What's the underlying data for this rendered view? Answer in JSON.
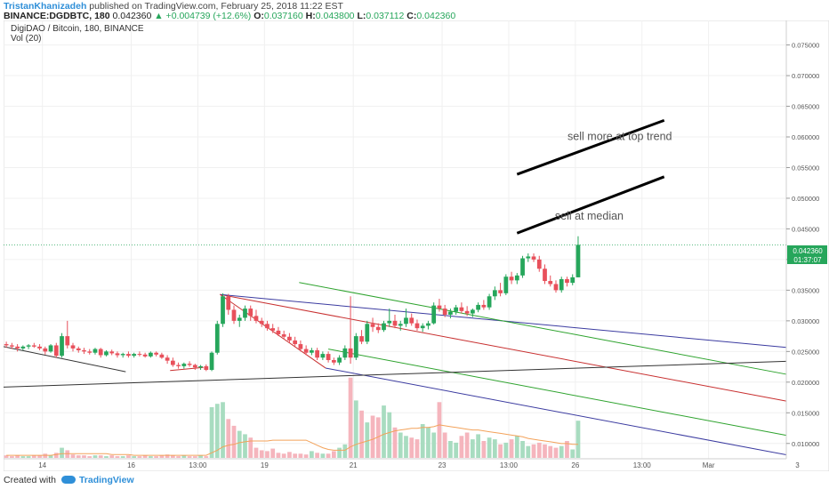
{
  "header": {
    "author": "TristanKhanizadeh",
    "published": "published on TradingView.com, February 25, 2018 11:22 EST",
    "symbol": "BINANCE:DGDBTC, 180",
    "last": "0.042360",
    "change": "▲ +0.004739 (+12.6%)",
    "open_label": "O:",
    "open": "0.037160",
    "high_label": "H:",
    "high": "0.043800",
    "low_label": "L:",
    "low": "0.037112",
    "close_label": "C:",
    "close": "0.042360"
  },
  "legend": {
    "pair": "DigiDAO / Bitcoin, 180, BINANCE",
    "volume": "Vol (20)"
  },
  "price_label": {
    "value": "0.042360",
    "timer": "01:37:07"
  },
  "footer": {
    "created_with": "Created with",
    "brand": "TradingView"
  },
  "colors": {
    "up": "#26a65b",
    "down": "#e8505b",
    "vol_up": "#a8dcc0",
    "vol_down": "#f5b5bd",
    "pitchfork_outer": "#3b3ba0",
    "pitchfork_inner": "#2ea32e",
    "pitchfork_median": "#c83030",
    "ma": "#f3a25a"
  },
  "chart_data": {
    "type": "candlestick",
    "y_axis": {
      "range": [
        0.0075,
        0.079
      ],
      "ticks": [
        "0.010000",
        "0.015000",
        "0.020000",
        "0.025000",
        "0.030000",
        "0.035000",
        "0.040000",
        "0.045000",
        "0.050000",
        "0.055000",
        "0.060000",
        "0.065000",
        "0.070000",
        "0.075000"
      ],
      "tick_values": [
        0.01,
        0.015,
        0.02,
        0.025,
        0.03,
        0.035,
        0.04,
        0.045,
        0.05,
        0.055,
        0.06,
        0.065,
        0.07,
        0.075
      ]
    },
    "x_axis": {
      "range_bars": [
        0,
        141
      ],
      "ticks": [
        {
          "bar": 7,
          "label": "14"
        },
        {
          "bar": 23,
          "label": "16"
        },
        {
          "bar": 35,
          "label": "13:00"
        },
        {
          "bar": 47,
          "label": "19"
        },
        {
          "bar": 63,
          "label": "21"
        },
        {
          "bar": 79,
          "label": "23"
        },
        {
          "bar": 91,
          "label": "13:00"
        },
        {
          "bar": 103,
          "label": "26"
        },
        {
          "bar": 115,
          "label": "13:00"
        },
        {
          "bar": 127,
          "label": "Mar"
        },
        {
          "bar": 143,
          "label": "3"
        }
      ]
    },
    "candles": [
      [
        0.0262,
        0.0266,
        0.0256,
        0.026
      ],
      [
        0.026,
        0.0264,
        0.0254,
        0.0258
      ],
      [
        0.0258,
        0.0262,
        0.025,
        0.0255
      ],
      [
        0.0255,
        0.026,
        0.0252,
        0.0258
      ],
      [
        0.0258,
        0.0262,
        0.0254,
        0.026
      ],
      [
        0.026,
        0.0264,
        0.0256,
        0.0258
      ],
      [
        0.0258,
        0.0262,
        0.0252,
        0.0255
      ],
      [
        0.0255,
        0.0258,
        0.0245,
        0.025
      ],
      [
        0.025,
        0.0262,
        0.0248,
        0.026
      ],
      [
        0.026,
        0.0264,
        0.024,
        0.0243
      ],
      [
        0.0243,
        0.028,
        0.024,
        0.0275
      ],
      [
        0.0275,
        0.03,
        0.0255,
        0.026
      ],
      [
        0.026,
        0.0264,
        0.025,
        0.0255
      ],
      [
        0.0255,
        0.0258,
        0.0248,
        0.0252
      ],
      [
        0.0252,
        0.0256,
        0.0246,
        0.025
      ],
      [
        0.025,
        0.0254,
        0.0245,
        0.0248
      ],
      [
        0.0248,
        0.0256,
        0.0245,
        0.0254
      ],
      [
        0.0254,
        0.0256,
        0.024,
        0.0244
      ],
      [
        0.0244,
        0.0252,
        0.0242,
        0.025
      ],
      [
        0.025,
        0.0253,
        0.0244,
        0.0247
      ],
      [
        0.0247,
        0.025,
        0.024,
        0.0244
      ],
      [
        0.0244,
        0.0248,
        0.024,
        0.0246
      ],
      [
        0.0246,
        0.025,
        0.024,
        0.0243
      ],
      [
        0.0243,
        0.0248,
        0.024,
        0.0246
      ],
      [
        0.0246,
        0.025,
        0.0242,
        0.0245
      ],
      [
        0.0245,
        0.0248,
        0.024,
        0.0242
      ],
      [
        0.0242,
        0.025,
        0.024,
        0.0248
      ],
      [
        0.0248,
        0.025,
        0.0242,
        0.0245
      ],
      [
        0.0245,
        0.0248,
        0.0238,
        0.024
      ],
      [
        0.024,
        0.0244,
        0.023,
        0.0235
      ],
      [
        0.0235,
        0.024,
        0.0225,
        0.0228
      ],
      [
        0.0228,
        0.0232,
        0.0222,
        0.0226
      ],
      [
        0.0226,
        0.0232,
        0.0222,
        0.023
      ],
      [
        0.023,
        0.0234,
        0.0225,
        0.0228
      ],
      [
        0.0228,
        0.023,
        0.022,
        0.0224
      ],
      [
        0.0224,
        0.0228,
        0.022,
        0.0226
      ],
      [
        0.0226,
        0.0229,
        0.0218,
        0.022
      ],
      [
        0.022,
        0.025,
        0.0218,
        0.0248
      ],
      [
        0.0248,
        0.03,
        0.0245,
        0.0295
      ],
      [
        0.0295,
        0.0345,
        0.029,
        0.034
      ],
      [
        0.034,
        0.0344,
        0.031,
        0.0318
      ],
      [
        0.0318,
        0.0325,
        0.0295,
        0.03
      ],
      [
        0.03,
        0.031,
        0.029,
        0.0305
      ],
      [
        0.0305,
        0.0325,
        0.03,
        0.032
      ],
      [
        0.032,
        0.0325,
        0.03,
        0.0308
      ],
      [
        0.0308,
        0.0318,
        0.0296,
        0.03
      ],
      [
        0.03,
        0.0305,
        0.029,
        0.0295
      ],
      [
        0.0295,
        0.03,
        0.0284,
        0.0288
      ],
      [
        0.0288,
        0.0295,
        0.028,
        0.0284
      ],
      [
        0.0284,
        0.029,
        0.0275,
        0.0278
      ],
      [
        0.0278,
        0.0284,
        0.027,
        0.0274
      ],
      [
        0.0274,
        0.028,
        0.0264,
        0.0268
      ],
      [
        0.0268,
        0.0274,
        0.0258,
        0.0262
      ],
      [
        0.0262,
        0.0268,
        0.025,
        0.0254
      ],
      [
        0.0254,
        0.026,
        0.0244,
        0.0248
      ],
      [
        0.0248,
        0.0256,
        0.0244,
        0.0252
      ],
      [
        0.0252,
        0.0256,
        0.0236,
        0.024
      ],
      [
        0.024,
        0.025,
        0.0236,
        0.0246
      ],
      [
        0.0246,
        0.025,
        0.0232,
        0.0236
      ],
      [
        0.0236,
        0.024,
        0.0228,
        0.0232
      ],
      [
        0.0232,
        0.0244,
        0.0228,
        0.024
      ],
      [
        0.024,
        0.026,
        0.0236,
        0.0255
      ],
      [
        0.0255,
        0.034,
        0.023,
        0.024
      ],
      [
        0.024,
        0.028,
        0.0236,
        0.0275
      ],
      [
        0.0275,
        0.0285,
        0.0262,
        0.0266
      ],
      [
        0.0266,
        0.03,
        0.0262,
        0.0295
      ],
      [
        0.0295,
        0.0305,
        0.0282,
        0.029
      ],
      [
        0.029,
        0.0296,
        0.028,
        0.0285
      ],
      [
        0.0285,
        0.03,
        0.0282,
        0.0296
      ],
      [
        0.0296,
        0.032,
        0.029,
        0.03
      ],
      [
        0.03,
        0.031,
        0.0288,
        0.0292
      ],
      [
        0.0292,
        0.03,
        0.0284,
        0.0295
      ],
      [
        0.0295,
        0.032,
        0.029,
        0.0305
      ],
      [
        0.0305,
        0.0312,
        0.0292,
        0.0296
      ],
      [
        0.0296,
        0.0302,
        0.0284,
        0.0288
      ],
      [
        0.0288,
        0.0296,
        0.0282,
        0.0292
      ],
      [
        0.0292,
        0.03,
        0.0286,
        0.0296
      ],
      [
        0.0296,
        0.033,
        0.0294,
        0.0325
      ],
      [
        0.0325,
        0.0336,
        0.0315,
        0.032
      ],
      [
        0.032,
        0.0326,
        0.0306,
        0.031
      ],
      [
        0.031,
        0.032,
        0.0304,
        0.0315
      ],
      [
        0.0315,
        0.0326,
        0.031,
        0.0322
      ],
      [
        0.0322,
        0.033,
        0.0312,
        0.0316
      ],
      [
        0.0316,
        0.0324,
        0.0308,
        0.0312
      ],
      [
        0.0312,
        0.032,
        0.0306,
        0.0318
      ],
      [
        0.0318,
        0.033,
        0.0314,
        0.0326
      ],
      [
        0.0326,
        0.0334,
        0.0318,
        0.0322
      ],
      [
        0.0322,
        0.0344,
        0.0318,
        0.034
      ],
      [
        0.034,
        0.0356,
        0.0334,
        0.035
      ],
      [
        0.035,
        0.0362,
        0.034,
        0.0345
      ],
      [
        0.0345,
        0.0376,
        0.0342,
        0.0372
      ],
      [
        0.0372,
        0.038,
        0.036,
        0.0366
      ],
      [
        0.0366,
        0.0378,
        0.036,
        0.0374
      ],
      [
        0.0374,
        0.0406,
        0.037,
        0.0402
      ],
      [
        0.0402,
        0.041,
        0.0396,
        0.0405
      ],
      [
        0.0405,
        0.041,
        0.0396,
        0.04
      ],
      [
        0.04,
        0.0406,
        0.038,
        0.0385
      ],
      [
        0.0385,
        0.0392,
        0.036,
        0.0365
      ],
      [
        0.0365,
        0.0374,
        0.0356,
        0.036
      ],
      [
        0.036,
        0.0366,
        0.0346,
        0.035
      ],
      [
        0.035,
        0.0372,
        0.0346,
        0.0368
      ],
      [
        0.0368,
        0.0372,
        0.0356,
        0.0362
      ],
      [
        0.0362,
        0.0376,
        0.0358,
        0.0371
      ],
      [
        0.0371,
        0.0438,
        0.0371,
        0.0424
      ]
    ],
    "volume": [
      3,
      2,
      3,
      2,
      2,
      3,
      3,
      5,
      3,
      6,
      12,
      9,
      4,
      3,
      3,
      2,
      3,
      3,
      2,
      3,
      2,
      2,
      3,
      2,
      2,
      3,
      2,
      2,
      3,
      4,
      3,
      2,
      3,
      2,
      2,
      3,
      2,
      60,
      64,
      66,
      46,
      38,
      32,
      28,
      24,
      12,
      9,
      8,
      11,
      6,
      5,
      7,
      5,
      5,
      4,
      8,
      6,
      5,
      5,
      8,
      12,
      16,
      95,
      68,
      56,
      42,
      50,
      48,
      62,
      54,
      36,
      30,
      26,
      24,
      22,
      40,
      36,
      30,
      66,
      30,
      20,
      18,
      26,
      30,
      22,
      28,
      20,
      24,
      22,
      16,
      18,
      22,
      26,
      20,
      14,
      16,
      18,
      16,
      14,
      12,
      14,
      20,
      10,
      44
    ],
    "volume_ma": [
      3,
      3,
      3,
      3,
      3,
      3,
      3,
      3,
      3,
      4,
      5,
      5,
      5,
      5,
      5,
      5,
      5,
      5,
      5,
      4,
      4,
      4,
      4,
      3,
      3,
      3,
      3,
      3,
      3,
      3,
      3,
      3,
      3,
      3,
      3,
      3,
      3,
      6,
      9,
      13,
      15,
      16,
      18,
      19,
      20,
      20,
      20,
      20,
      21,
      21,
      21,
      21,
      21,
      21,
      21,
      18,
      15,
      12,
      10,
      9,
      9,
      9,
      13,
      16,
      18,
      20,
      22,
      25,
      28,
      30,
      32,
      33,
      34,
      35,
      35,
      36,
      36,
      37,
      39,
      38,
      37,
      36,
      35,
      34,
      33,
      33,
      32,
      31,
      30,
      29,
      28,
      27,
      26,
      25,
      23,
      22,
      21,
      20,
      19,
      18,
      17,
      17,
      16,
      16
    ],
    "pitchfork": {
      "p1": {
        "bar": 39,
        "price": 0.0343
      },
      "p2": {
        "bar": 67.5,
        "price": 0.0382
      },
      "p3": {
        "bar": 58,
        "price": 0.0223
      },
      "slope_per_bar": 0.000395,
      "inner_fraction": 0.5
    },
    "trendlines": [
      {
        "from": {
          "bar": 0,
          "price": 0.0258
        },
        "to": {
          "bar": 22,
          "price": 0.0217
        },
        "color": "#333333",
        "width": 1
      },
      {
        "from": {
          "bar": 30,
          "price": 0.0219
        },
        "to": {
          "bar": 36,
          "price": 0.0224
        },
        "color": "#c83030",
        "width": 1
      },
      {
        "from": {
          "bar": 0,
          "price": 0.0192
        },
        "to": {
          "bar": 141,
          "price": 0.0234
        },
        "color": "#333333",
        "width": 1
      },
      {
        "from": {
          "bar": 92.5,
          "price": 0.0539
        },
        "to": {
          "bar": 119,
          "price": 0.0627
        },
        "color": "#000000",
        "width": 3
      },
      {
        "from": {
          "bar": 92.5,
          "price": 0.0443
        },
        "to": {
          "bar": 119,
          "price": 0.0535
        },
        "color": "#000000",
        "width": 3
      }
    ],
    "annotations": [
      {
        "text": "sell more at top trend",
        "bar": 111,
        "price": 0.0595
      },
      {
        "text": "sell at median",
        "bar": 105.5,
        "price": 0.0465
      }
    ],
    "last_price": 0.04236,
    "grid": true
  }
}
